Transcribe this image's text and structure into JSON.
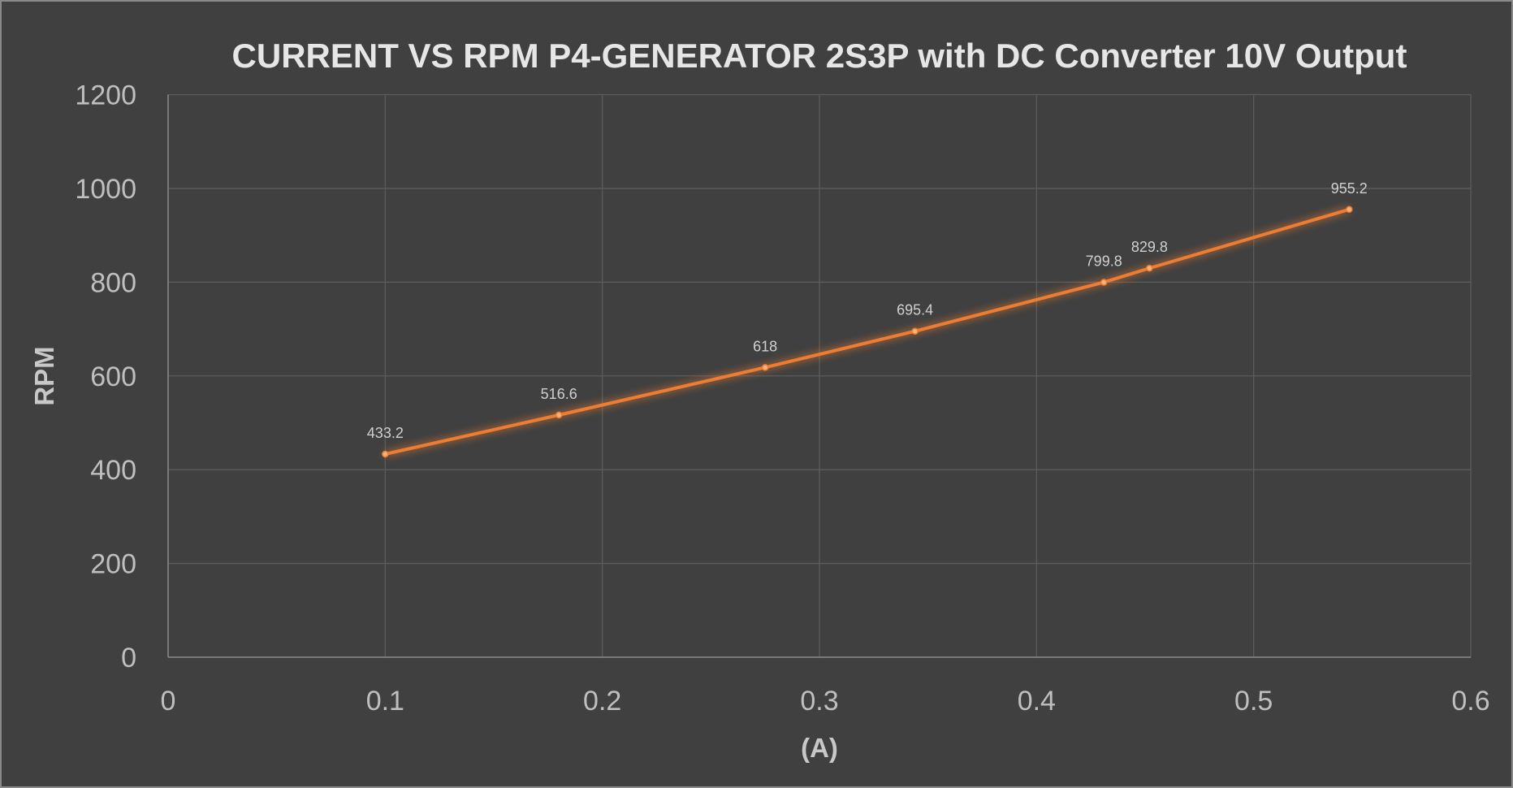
{
  "chart_data": {
    "type": "line",
    "title": "CURRENT VS RPM P4-GENERATOR 2S3P with DC Converter 10V Output",
    "xlabel": "(A)",
    "ylabel": "RPM",
    "xlim": [
      0,
      0.6
    ],
    "ylim": [
      0,
      1200
    ],
    "xticks": [
      "0",
      "0.1",
      "0.2",
      "0.3",
      "0.4",
      "0.5",
      "0.6"
    ],
    "yticks": [
      "0",
      "200",
      "400",
      "600",
      "800",
      "1000",
      "1200"
    ],
    "grid": true,
    "legend": "none",
    "series": [
      {
        "name": "RPM",
        "color": "#ED7D31",
        "x": [
          0.1,
          0.18,
          0.275,
          0.344,
          0.431,
          0.452,
          0.544
        ],
        "y": [
          433.2,
          516.6,
          618,
          695.4,
          799.8,
          829.8,
          955.2
        ],
        "labels": [
          "433.2",
          "516.6",
          "618",
          "695.4",
          "799.8",
          "829.8",
          "955.2"
        ]
      }
    ]
  }
}
